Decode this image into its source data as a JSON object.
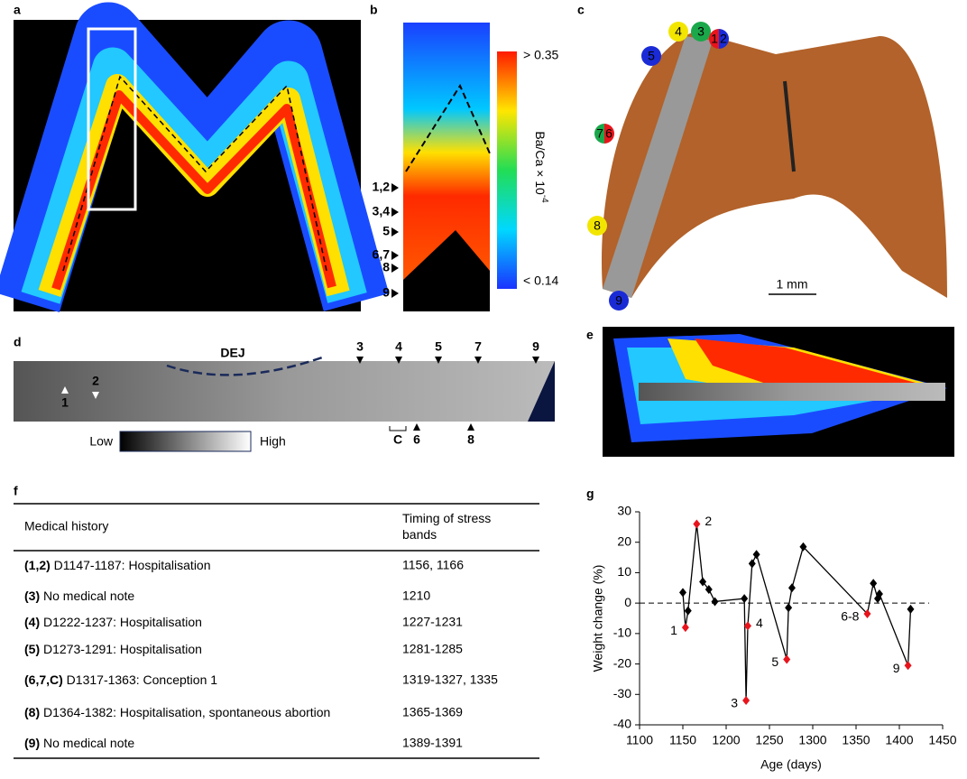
{
  "panels": {
    "a": "a",
    "b": "b",
    "c": "c",
    "d": "d",
    "e": "e",
    "f": "f",
    "g": "g"
  },
  "panel_b": {
    "markers": [
      "1,2",
      "3,4",
      "5",
      "6,7",
      "8",
      "9"
    ],
    "colorbar_max": "> 0.35",
    "colorbar_min": "< 0.14",
    "colorbar_label": "Ba/Ca × 10",
    "colorbar_exponent": "-4"
  },
  "panel_c": {
    "circles": [
      {
        "labels": [
          "4"
        ],
        "colors": [
          "#f2e600"
        ]
      },
      {
        "labels": [
          "3"
        ],
        "colors": [
          "#1aa84a"
        ]
      },
      {
        "labels": [
          "1",
          "2"
        ],
        "colors": [
          "#e8141c",
          "#1a2bd6"
        ]
      },
      {
        "labels": [
          "5"
        ],
        "colors": [
          "#1a2bd6"
        ]
      },
      {
        "labels": [
          "7",
          "6"
        ],
        "colors": [
          "#1aa84a",
          "#e8141c"
        ]
      },
      {
        "labels": [
          "8"
        ],
        "colors": [
          "#f2e600"
        ]
      },
      {
        "labels": [
          "9"
        ],
        "colors": [
          "#1a2bd6"
        ]
      }
    ],
    "scale_bar": "1 mm"
  },
  "panel_d": {
    "top_markers": [
      "3",
      "4",
      "5",
      "7",
      "9"
    ],
    "bottom_markers": [
      "6",
      "8"
    ],
    "bracket": "C",
    "left_markers": [
      "1",
      "2"
    ],
    "dej": "DEJ",
    "scale_low": "Low",
    "scale_high": "High"
  },
  "table": {
    "header": [
      "Medical history",
      "Timing of stress bands"
    ],
    "rows": [
      {
        "ref": "(1,2)",
        "text": " D1147-1187: Hospitalisation",
        "timing": "1156, 1166"
      },
      {
        "ref": "(3)",
        "text": " No medical note",
        "timing": "1210"
      },
      {
        "ref": "(4)",
        "text": " D1222-1237: Hospitalisation",
        "timing": "1227-1231"
      },
      {
        "ref": "(5)",
        "text": " D1273-1291: Hospitalisation",
        "timing": "1281-1285"
      },
      {
        "ref": "(6,7,C)",
        "text": " D1317-1363: Conception 1",
        "timing": "1319-1327, 1335"
      },
      {
        "ref": "(8)",
        "text": " D1364-1382: Hospitalisation, spontaneous abortion",
        "timing": "1365-1369"
      },
      {
        "ref": "(9)",
        "text": " No medical note",
        "timing": "1389-1391"
      }
    ]
  },
  "chart_data": {
    "type": "line",
    "x_label": "Age (days)",
    "y_label": "Weight change (%)",
    "x": [
      1150,
      1153,
      1156,
      1166,
      1173,
      1180,
      1187,
      1221,
      1223,
      1225,
      1230,
      1235,
      1270,
      1272,
      1276,
      1289,
      1363,
      1370,
      1375,
      1377,
      1410,
      1413
    ],
    "values": [
      3.5,
      -8,
      -2.5,
      26,
      7,
      4.5,
      0.5,
      1.5,
      -32,
      -7.5,
      13,
      16,
      -18.5,
      -1.5,
      5,
      18.5,
      -3.5,
      6.5,
      1.5,
      3,
      -20.5,
      -2
    ],
    "point_labels": [
      null,
      "1",
      null,
      "2",
      null,
      null,
      null,
      null,
      "3",
      "4",
      null,
      null,
      "5",
      null,
      null,
      null,
      "6-8",
      null,
      null,
      null,
      "9",
      null
    ],
    "point_colors": [
      "#000",
      "#e8141c",
      "#000",
      "#e8141c",
      "#000",
      "#000",
      "#000",
      "#000",
      "#e8141c",
      "#e8141c",
      "#000",
      "#000",
      "#e8141c",
      "#000",
      "#000",
      "#000",
      "#e8141c",
      "#000",
      "#000",
      "#000",
      "#e8141c",
      "#000"
    ],
    "label_color": "#e8141c",
    "color": "#000",
    "xlim": [
      1100,
      1450
    ],
    "xticks": [
      1100,
      1150,
      1200,
      1250,
      1300,
      1350,
      1400,
      1450
    ],
    "ylim": [
      -40,
      30
    ],
    "yticks": [
      -40,
      -30,
      -20,
      -10,
      0,
      10,
      20,
      30
    ],
    "reference_line": 0
  }
}
